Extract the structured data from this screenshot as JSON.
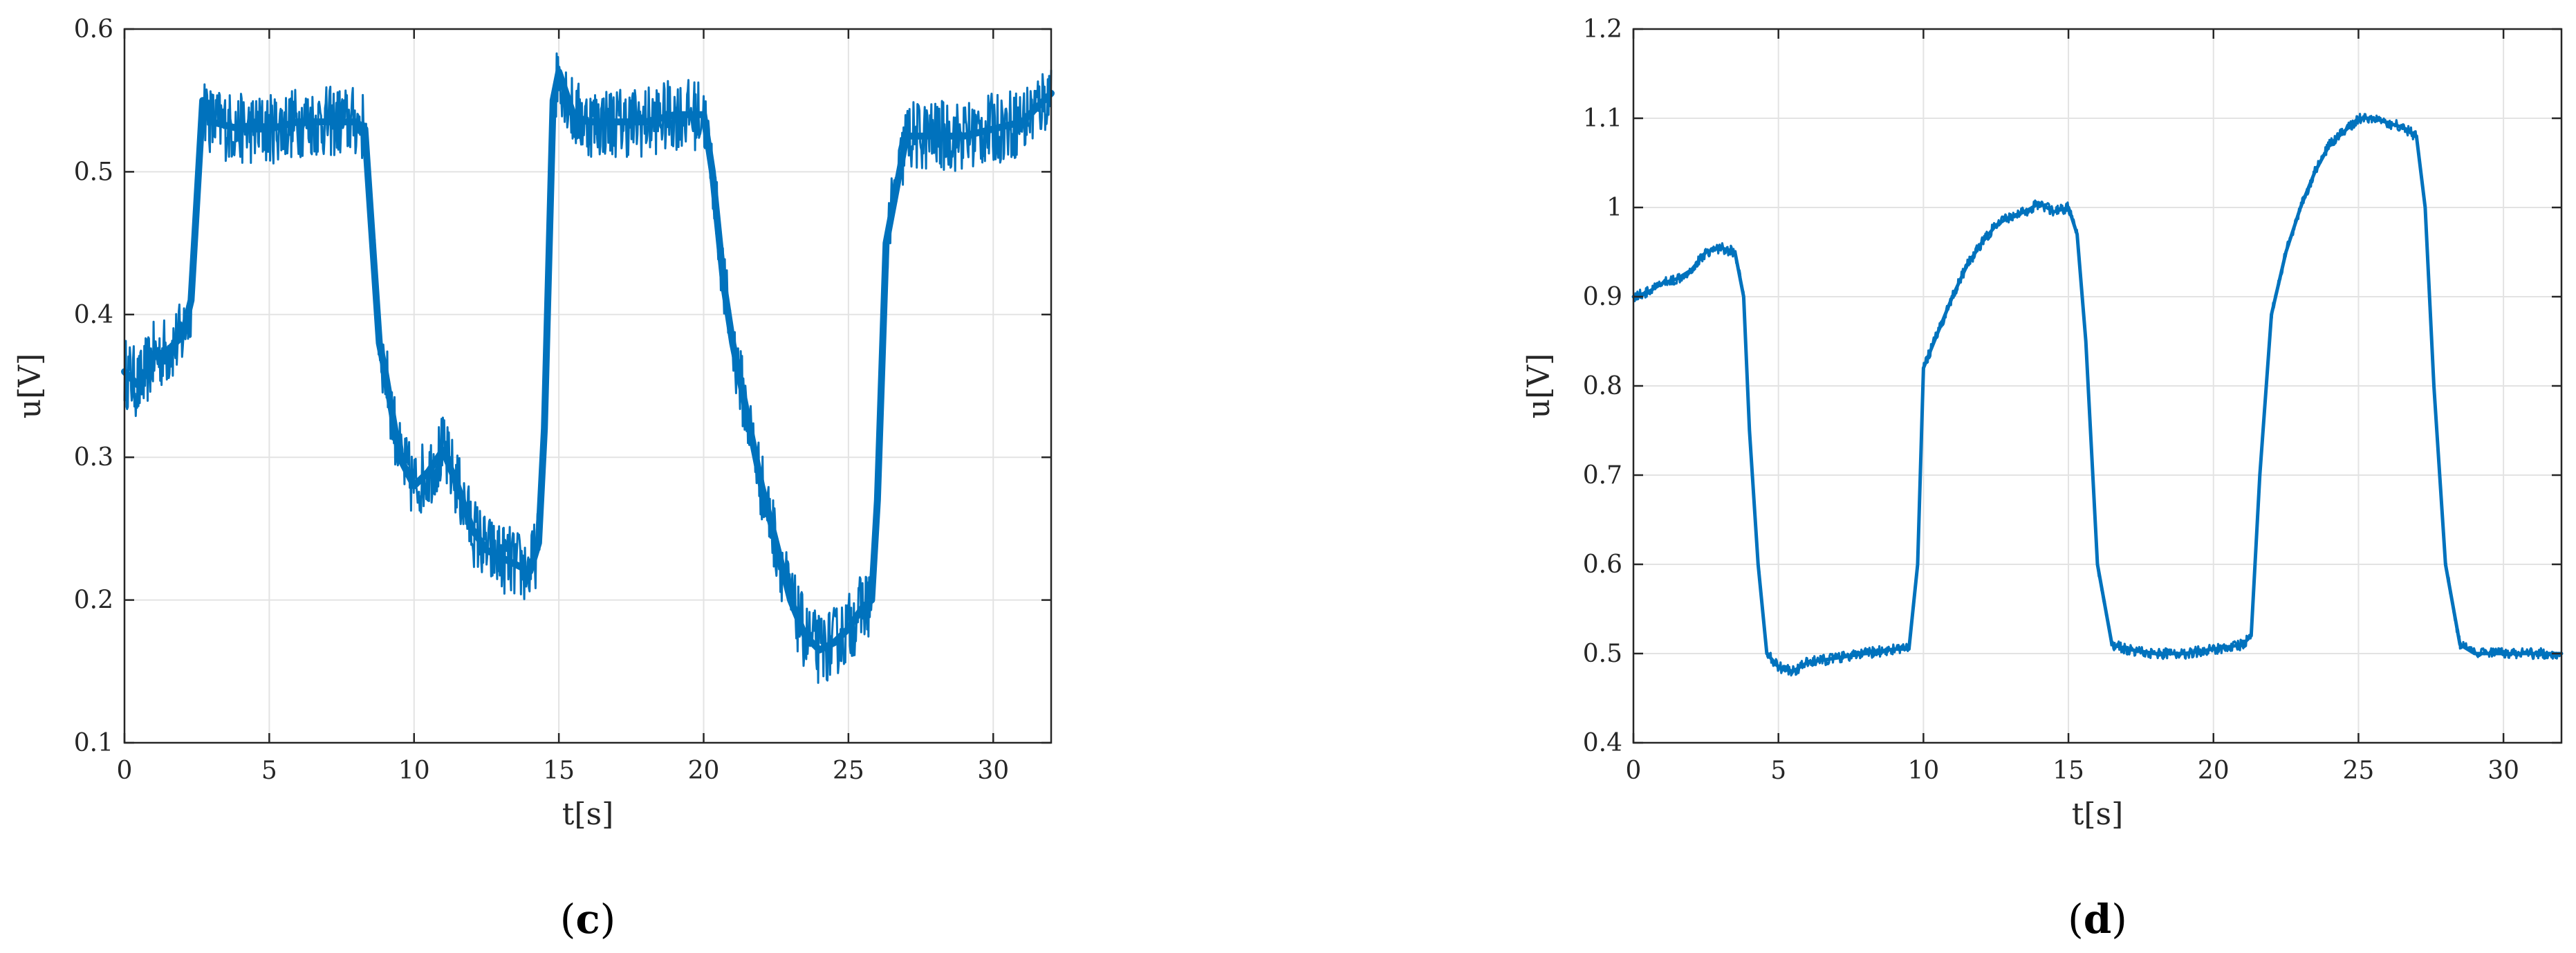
{
  "chart_data": [
    {
      "type": "line",
      "caption": "c",
      "xlabel": "t[s]",
      "ylabel": "u[V]",
      "xlim": [
        0,
        32
      ],
      "ylim": [
        0.1,
        0.6
      ],
      "xticks": [
        0,
        5,
        10,
        15,
        20,
        25,
        30
      ],
      "yticks": [
        0.1,
        0.2,
        0.3,
        0.4,
        0.5,
        0.6
      ],
      "xtick_labels": [
        "0",
        "5",
        "10",
        "15",
        "20",
        "25",
        "30"
      ],
      "ytick_labels": [
        "0.1",
        "0.2",
        "0.3",
        "0.4",
        "0.5",
        "0.6"
      ],
      "grid": true,
      "line_color": "#0072BD",
      "noise_band": 0.025,
      "series": [
        {
          "x": [
            0,
            0.5,
            1,
            1.5,
            2,
            2.3,
            2.5,
            2.7,
            3,
            4,
            5,
            6,
            7,
            8,
            8.3,
            8.5,
            8.8,
            9,
            9.5,
            10,
            10.5,
            11,
            11.5,
            12,
            12.5,
            13,
            13.5,
            14,
            14.3,
            14.5,
            14.8,
            15,
            15.5,
            16,
            17,
            18,
            19,
            20,
            20.3,
            20.7,
            21,
            21.5,
            22,
            22.5,
            23,
            23.5,
            24,
            24.5,
            25,
            25.5,
            25.8,
            26,
            26.3,
            27,
            28,
            29,
            30,
            31,
            31.5,
            32
          ],
          "y": [
            0.36,
            0.35,
            0.37,
            0.375,
            0.385,
            0.41,
            0.48,
            0.55,
            0.535,
            0.53,
            0.53,
            0.535,
            0.535,
            0.535,
            0.53,
            0.47,
            0.38,
            0.36,
            0.3,
            0.28,
            0.29,
            0.305,
            0.28,
            0.25,
            0.235,
            0.23,
            0.225,
            0.22,
            0.24,
            0.32,
            0.55,
            0.57,
            0.54,
            0.535,
            0.535,
            0.535,
            0.54,
            0.54,
            0.5,
            0.42,
            0.38,
            0.33,
            0.28,
            0.24,
            0.2,
            0.175,
            0.165,
            0.17,
            0.18,
            0.195,
            0.2,
            0.27,
            0.45,
            0.525,
            0.525,
            0.525,
            0.53,
            0.535,
            0.545,
            0.555
          ]
        }
      ]
    },
    {
      "type": "line",
      "caption": "d",
      "xlabel": "t[s]",
      "ylabel": "u[V]",
      "xlim": [
        0,
        32
      ],
      "ylim": [
        0.4,
        1.2
      ],
      "xticks": [
        0,
        5,
        10,
        15,
        20,
        25,
        30
      ],
      "yticks": [
        0.4,
        0.5,
        0.6,
        0.7,
        0.8,
        0.9,
        1.0,
        1.1,
        1.2
      ],
      "xtick_labels": [
        "0",
        "5",
        "10",
        "15",
        "20",
        "25",
        "30"
      ],
      "ytick_labels": [
        "0.4",
        "0.5",
        "0.6",
        "0.7",
        "0.8",
        "0.9",
        "1",
        "1.1",
        "1.2"
      ],
      "grid": true,
      "line_color": "#0072BD",
      "noise_band": 0.006,
      "series": [
        {
          "x": [
            0,
            0.5,
            1,
            1.5,
            2,
            2.5,
            3,
            3.5,
            3.8,
            4,
            4.3,
            4.6,
            5,
            5.5,
            6,
            7,
            8,
            9,
            9.5,
            9.8,
            10,
            10.5,
            11,
            11.5,
            12,
            12.5,
            13,
            13.5,
            14,
            14.5,
            15,
            15.3,
            15.6,
            16,
            16.5,
            17,
            18,
            19,
            20,
            21,
            21.3,
            21.6,
            22,
            22.5,
            23,
            23.5,
            24,
            24.5,
            25,
            25.5,
            26,
            26.5,
            27,
            27.3,
            27.6,
            28,
            28.5,
            29,
            30,
            31,
            32
          ],
          "y": [
            0.9,
            0.905,
            0.915,
            0.92,
            0.93,
            0.95,
            0.955,
            0.95,
            0.9,
            0.75,
            0.6,
            0.5,
            0.485,
            0.48,
            0.49,
            0.495,
            0.5,
            0.505,
            0.505,
            0.6,
            0.82,
            0.86,
            0.9,
            0.935,
            0.96,
            0.98,
            0.99,
            0.995,
            1.005,
            0.995,
            1.0,
            0.97,
            0.85,
            0.6,
            0.51,
            0.505,
            0.5,
            0.5,
            0.505,
            0.51,
            0.52,
            0.7,
            0.88,
            0.95,
            1.0,
            1.04,
            1.07,
            1.085,
            1.1,
            1.1,
            1.095,
            1.09,
            1.08,
            1.0,
            0.8,
            0.6,
            0.51,
            0.5,
            0.5,
            0.5,
            0.5
          ]
        }
      ]
    }
  ]
}
